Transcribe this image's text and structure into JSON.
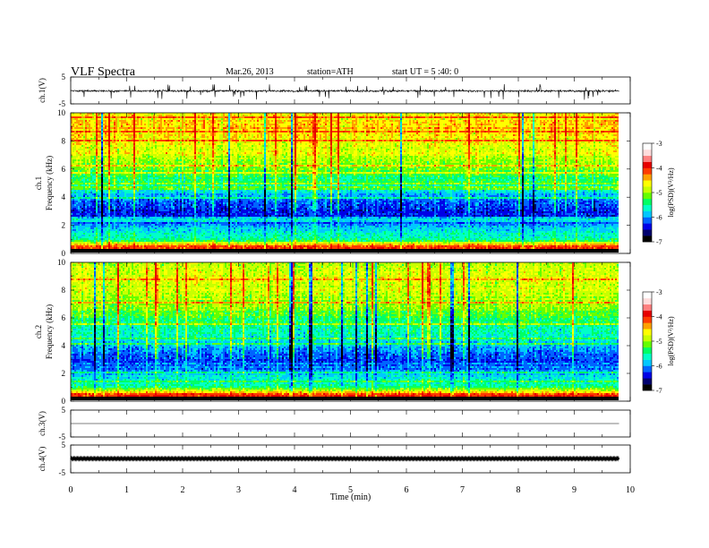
{
  "header": {
    "title": "VLF  Spectra",
    "date": "Mar.26, 2013",
    "station": "station=ATH",
    "start_ut": "start  UT  =   5 :40: 0"
  },
  "colors": {
    "frame": "#000000",
    "background": "#ffffff",
    "colormap": [
      "#000000",
      "#00006e",
      "#0000e6",
      "#0064ff",
      "#00c8ff",
      "#00ffc8",
      "#00ff64",
      "#64ff00",
      "#c8ff00",
      "#ffff00",
      "#ffa000",
      "#ff3c00",
      "#e60000",
      "#ff8080",
      "#ffdcdc",
      "#ffffff"
    ]
  },
  "chart_data": [
    {
      "type": "line",
      "panel": "ch1-waveform",
      "ylabel": "ch.1(V)",
      "ylim": [
        -5,
        5
      ],
      "yticks": [
        "5",
        "-5"
      ],
      "x_range_min": [
        0,
        9.8
      ],
      "description_level": "noisy waveform near -0.2 V with spikes to about +2 and -3 V"
    },
    {
      "type": "heatmap",
      "panel": "ch1-spectrogram",
      "channel": "ch.1",
      "ylabel": "Frequency  (kHz)",
      "ylim": [
        0,
        10
      ],
      "yticks": [
        "0",
        "2",
        "4",
        "6",
        "8",
        "10"
      ],
      "x_range_min": [
        0,
        9.8
      ],
      "colorbar": {
        "label": "log(PSD)(V²/Hz)",
        "range": [
          -7,
          -3
        ],
        "ticks": [
          "-3",
          "-4",
          "-5",
          "-6",
          "-7"
        ]
      },
      "mean_log_psd_by_frequency_kHz": {
        "0.5": -3.2,
        "1.0": -5.2,
        "1.5": -5.4,
        "2.0": -5.8,
        "2.5": -6.2,
        "3.0": -6.3,
        "3.5": -6.1,
        "4.0": -5.8,
        "4.5": -5.4,
        "5.0": -5.2,
        "5.5": -4.9,
        "6.0": -4.7,
        "6.5": -4.5,
        "7.0": -4.3,
        "7.5": -4.2,
        "8.0": -4.0,
        "8.5": -4.0,
        "9.0": -3.9,
        "9.5": -3.9,
        "10.0": -4.0
      }
    },
    {
      "type": "heatmap",
      "panel": "ch2-spectrogram",
      "channel": "ch.2",
      "ylabel": "Frequency  (kHz)",
      "ylim": [
        0,
        10
      ],
      "yticks": [
        "0",
        "2",
        "4",
        "6",
        "8",
        "10"
      ],
      "x_range_min": [
        0,
        9.8
      ],
      "colorbar": {
        "label": "log(PSD)(V²/Hz)",
        "range": [
          -7,
          -3
        ],
        "ticks": [
          "-3",
          "-4",
          "-5",
          "-6",
          "-7"
        ]
      },
      "mean_log_psd_by_frequency_kHz": {
        "0.5": -3.3,
        "1.0": -5.1,
        "1.5": -5.5,
        "2.0": -5.7,
        "2.5": -6.0,
        "3.0": -6.1,
        "3.5": -6.0,
        "4.0": -5.7,
        "4.5": -5.4,
        "5.0": -5.3,
        "5.5": -5.1,
        "6.0": -4.9,
        "6.5": -4.7,
        "7.0": -4.5,
        "7.5": -4.4,
        "8.0": -4.3,
        "8.5": -4.2,
        "9.0": -4.2,
        "9.5": -4.3,
        "10.0": -4.4
      }
    },
    {
      "type": "line",
      "panel": "ch3-waveform",
      "ylabel": "ch.3(V)",
      "ylim": [
        -5,
        5
      ],
      "yticks": [
        "5",
        "-5"
      ],
      "x_range_min": [
        0,
        9.8
      ],
      "level": 0
    },
    {
      "type": "line",
      "panel": "ch4-waveform",
      "ylabel": "ch.4(V)",
      "ylim": [
        -5,
        5
      ],
      "yticks": [
        "5",
        "-5"
      ],
      "x_range_min": [
        0,
        9.8
      ],
      "level": 0.1
    }
  ],
  "xaxis": {
    "label": "Time  (min)",
    "range": [
      0,
      10
    ],
    "ticks": [
      "0",
      "1",
      "2",
      "3",
      "4",
      "5",
      "6",
      "7",
      "8",
      "9",
      "10"
    ]
  }
}
